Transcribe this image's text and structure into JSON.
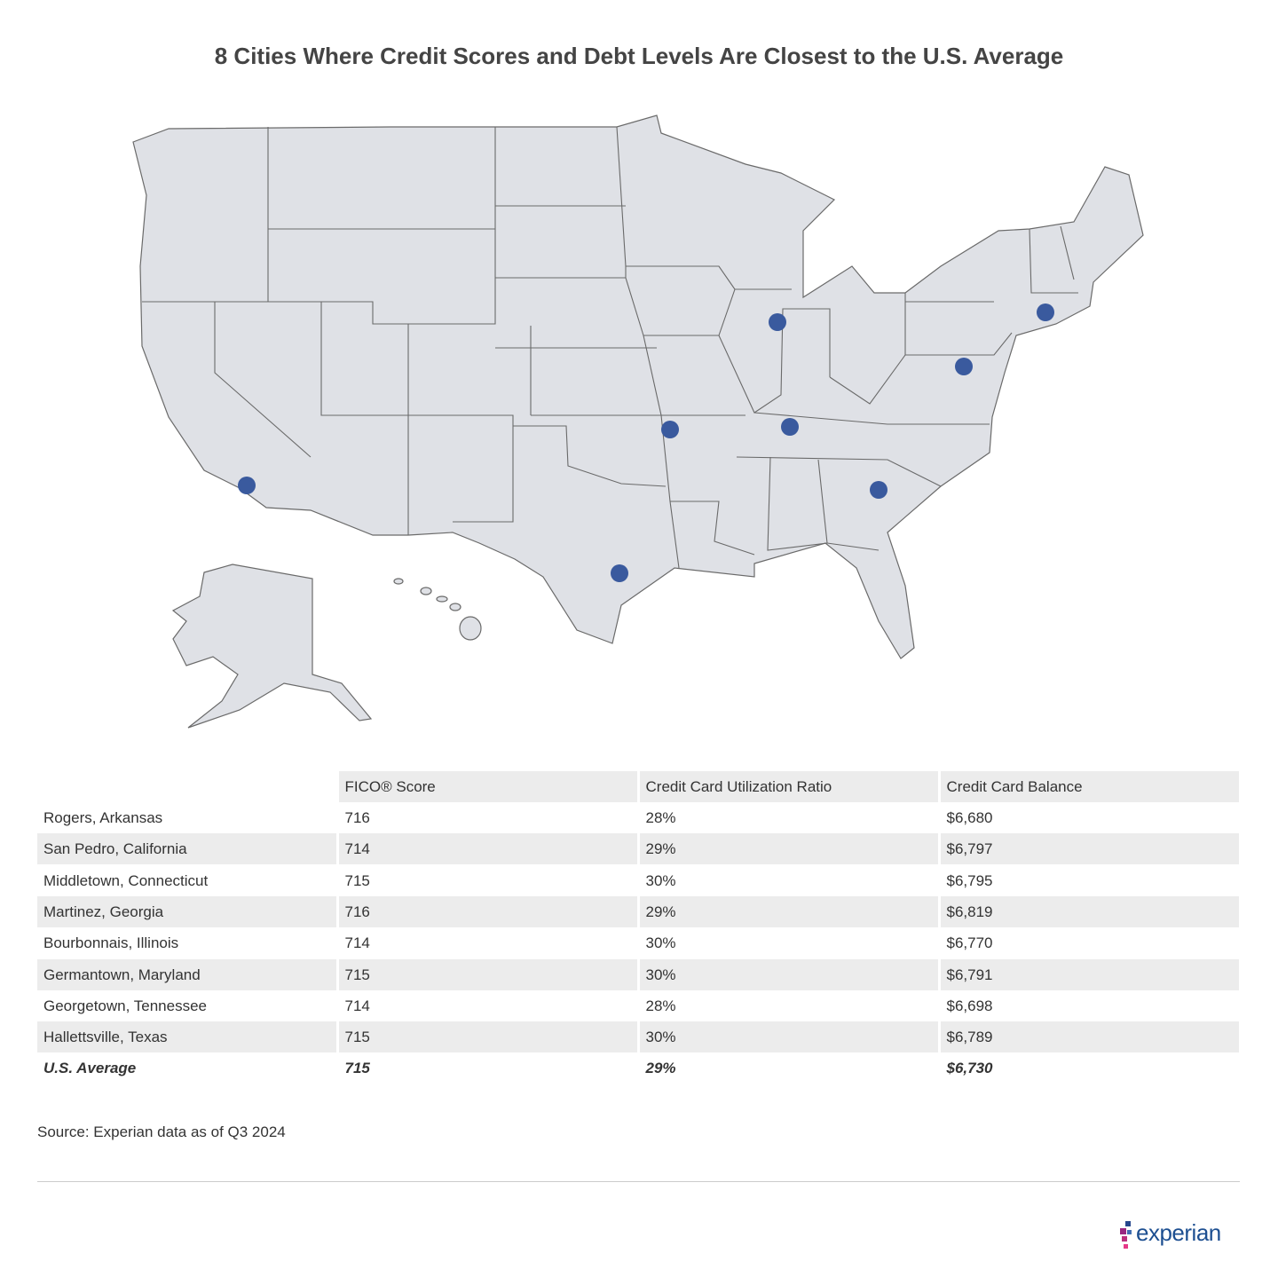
{
  "title": "8 Cities Where Credit Scores and Debt Levels Are Closest to the U.S. Average",
  "table": {
    "header": [
      "FICO® Score",
      "Credit Card Utilization Ratio",
      "Credit Card Balance"
    ],
    "rows": [
      [
        "Rogers, Arkansas",
        "716",
        "28%",
        "$6,680"
      ],
      [
        "San Pedro, California",
        "714",
        "29%",
        "$6,797"
      ],
      [
        "Middletown, Connecticut",
        "715",
        "30%",
        "$6,795"
      ],
      [
        "Martinez, Georgia",
        "716",
        "29%",
        "$6,819"
      ],
      [
        "Bourbonnais, Illinois",
        "714",
        "30%",
        "$6,770"
      ],
      [
        "Germantown, Maryland",
        "715",
        "30%",
        "$6,791"
      ],
      [
        "Georgetown, Tennessee",
        "714",
        "28%",
        "$6,698"
      ],
      [
        "Hallettsville, Texas",
        "715",
        "30%",
        "$6,789"
      ]
    ],
    "average": [
      "U.S. Average",
      "715",
      "29%",
      "$6,730"
    ]
  },
  "source": "Source: Experian data as of Q3 2024",
  "logo": "experian"
}
